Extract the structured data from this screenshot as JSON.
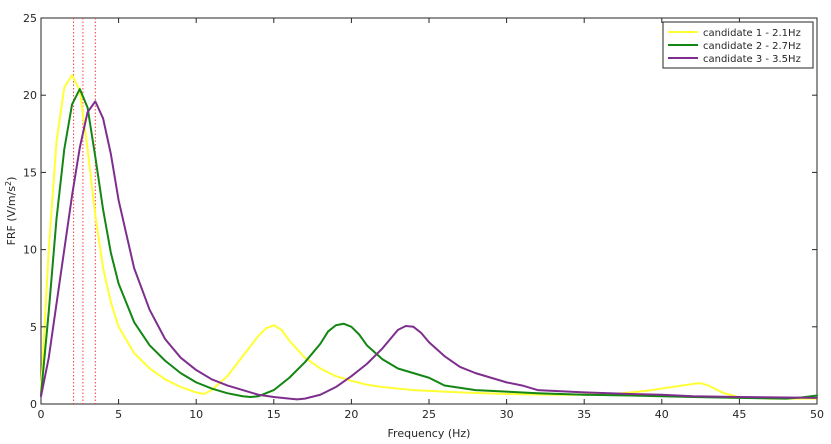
{
  "chart_data": {
    "type": "line",
    "title": "",
    "xlabel": "Frequency (Hz)",
    "ylabel_main": "FRF (V/m/s",
    "ylabel_superscript": "2",
    "ylabel_close": ")",
    "xlim": [
      0,
      50
    ],
    "ylim": [
      0,
      25
    ],
    "xticks": [
      0,
      5,
      10,
      15,
      20,
      25,
      30,
      35,
      40,
      45,
      50
    ],
    "yticks": [
      0,
      5,
      10,
      15,
      20,
      25
    ],
    "xtick_labels": [
      "0",
      "5",
      "10",
      "15",
      "20",
      "25",
      "30",
      "35",
      "40",
      "45",
      "50"
    ],
    "ytick_labels": [
      "0",
      "5",
      "10",
      "15",
      "20",
      "25"
    ],
    "grid": false,
    "legend_placement": "top-right",
    "reference_lines": {
      "color": "#ff3b3b",
      "style": "dotted",
      "x": [
        2.1,
        2.7,
        3.5
      ]
    },
    "series": [
      {
        "name": "candidate 1 - 2.1Hz",
        "color": "#ffff33",
        "x": [
          0,
          0.5,
          1,
          1.5,
          2,
          2.5,
          3,
          3.5,
          4,
          4.5,
          5,
          6,
          7,
          8,
          9,
          10,
          10.5,
          11,
          12,
          13,
          14,
          14.5,
          15,
          15.5,
          16,
          17,
          18,
          19,
          20,
          21,
          22,
          23,
          24,
          25,
          27,
          30,
          33,
          35,
          37,
          38,
          39,
          40,
          41,
          42,
          42.5,
          43,
          44,
          45,
          47,
          50
        ],
        "y": [
          0.8,
          10,
          17,
          20.5,
          21.3,
          20.3,
          16.5,
          12.2,
          8.8,
          6.6,
          5,
          3.3,
          2.3,
          1.6,
          1.1,
          0.75,
          0.65,
          0.9,
          1.8,
          3.1,
          4.4,
          4.9,
          5.1,
          4.8,
          4.1,
          3,
          2.3,
          1.8,
          1.5,
          1.25,
          1.1,
          1,
          0.9,
          0.85,
          0.75,
          0.65,
          0.6,
          0.6,
          0.65,
          0.75,
          0.85,
          1,
          1.15,
          1.3,
          1.35,
          1.2,
          0.7,
          0.45,
          0.35,
          0.35
        ]
      },
      {
        "name": "candidate 2 - 2.7Hz",
        "color": "#138613",
        "x": [
          0,
          0.5,
          1,
          1.5,
          2,
          2.5,
          3,
          3.5,
          4,
          4.5,
          5,
          6,
          7,
          8,
          9,
          10,
          11,
          12,
          13,
          13.5,
          14,
          15,
          16,
          17,
          18,
          18.5,
          19,
          19.5,
          20,
          20.5,
          21,
          22,
          23,
          24,
          25,
          26,
          28,
          30,
          32,
          35,
          38,
          40,
          42,
          45,
          48,
          49,
          50
        ],
        "y": [
          0.6,
          6,
          12,
          16.5,
          19.4,
          20.4,
          19.2,
          16,
          12.6,
          9.8,
          7.8,
          5.3,
          3.8,
          2.8,
          2,
          1.4,
          1,
          0.7,
          0.5,
          0.45,
          0.5,
          0.9,
          1.7,
          2.7,
          3.9,
          4.7,
          5.1,
          5.2,
          5,
          4.5,
          3.8,
          2.9,
          2.3,
          2,
          1.7,
          1.2,
          0.9,
          0.8,
          0.7,
          0.6,
          0.55,
          0.5,
          0.45,
          0.4,
          0.35,
          0.42,
          0.55
        ]
      },
      {
        "name": "candidate 3 - 3.5Hz",
        "color": "#7e2f8e",
        "x": [
          0,
          0.5,
          1,
          1.5,
          2,
          2.5,
          3,
          3.5,
          4,
          4.5,
          5,
          6,
          7,
          8,
          9,
          10,
          11,
          12,
          13,
          14,
          15,
          16,
          16.5,
          17,
          18,
          19,
          20,
          21,
          22,
          22.5,
          23,
          23.5,
          24,
          24.5,
          25,
          26,
          27,
          28,
          29,
          30,
          31,
          32,
          35,
          38,
          40,
          42,
          45,
          48,
          50
        ],
        "y": [
          0.5,
          3,
          6.5,
          10,
          13.5,
          16.6,
          18.9,
          19.6,
          18.5,
          16.2,
          13.2,
          8.8,
          6.1,
          4.2,
          3,
          2.2,
          1.6,
          1.2,
          0.9,
          0.6,
          0.45,
          0.35,
          0.3,
          0.35,
          0.6,
          1.1,
          1.8,
          2.6,
          3.6,
          4.2,
          4.8,
          5.05,
          5,
          4.6,
          4,
          3.1,
          2.4,
          2,
          1.7,
          1.4,
          1.2,
          0.9,
          0.75,
          0.65,
          0.6,
          0.5,
          0.45,
          0.42,
          0.4
        ]
      }
    ]
  }
}
